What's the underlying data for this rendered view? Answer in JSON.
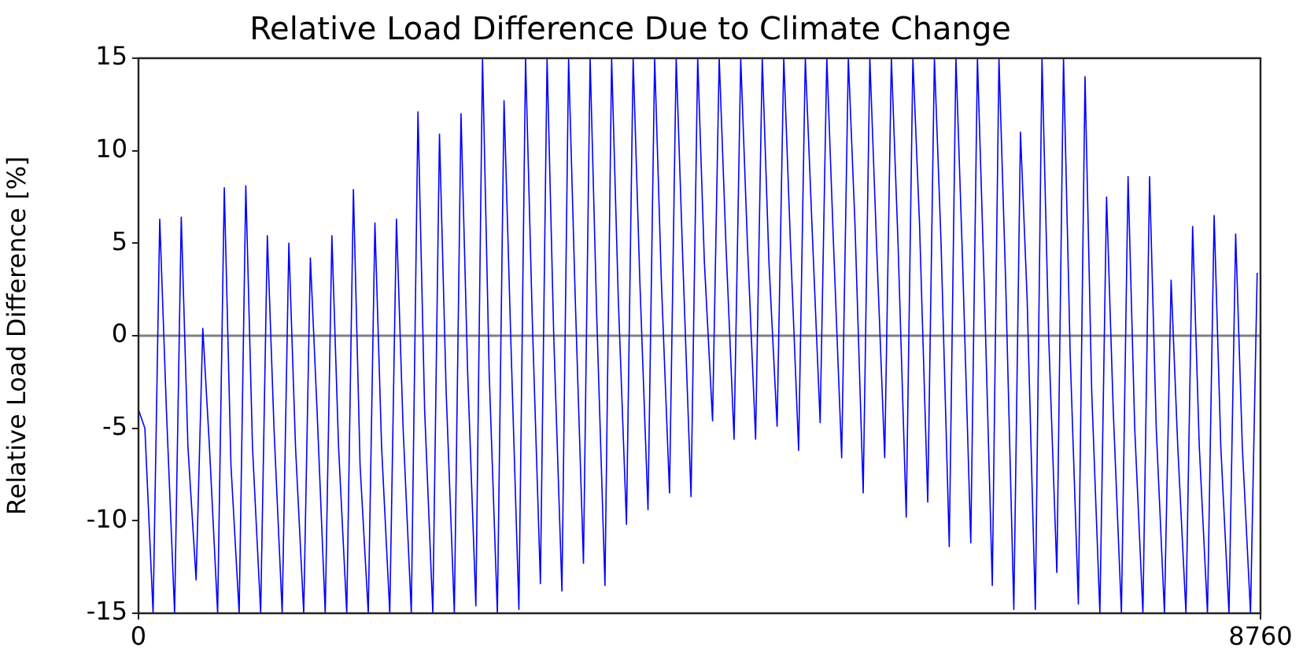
{
  "chart_data": {
    "type": "line",
    "title": "Relative Load Difference Due to Climate Change",
    "ylabel": "Relative Load Difference [%]",
    "xlim": [
      0,
      8760
    ],
    "xticks": [
      0,
      8760
    ],
    "ylim": [
      -15,
      15
    ],
    "yticks": [
      -15,
      -10,
      -5,
      0,
      5,
      10,
      15
    ],
    "grid": false,
    "legend": false,
    "marker": "none",
    "line_style": "solid",
    "ref_lines": [
      {
        "axis": "y",
        "value": 0,
        "color": "#808080"
      }
    ],
    "series": [
      {
        "color": "#0000ff",
        "x": [
          0,
          50,
          114,
          166,
          218,
          282,
          334,
          386,
          450,
          502,
          554,
          618,
          670,
          722,
          786,
          838,
          890,
          954,
          1006,
          1058,
          1122,
          1174,
          1226,
          1290,
          1342,
          1394,
          1458,
          1510,
          1562,
          1626,
          1678,
          1730,
          1794,
          1846,
          1898,
          1962,
          2014,
          2066,
          2130,
          2182,
          2234,
          2298,
          2350,
          2402,
          2466,
          2518,
          2570,
          2634,
          2686,
          2738,
          2802,
          2854,
          2906,
          2970,
          3022,
          3074,
          3138,
          3190,
          3242,
          3306,
          3358,
          3410,
          3474,
          3526,
          3578,
          3642,
          3694,
          3746,
          3810,
          3862,
          3914,
          3978,
          4030,
          4082,
          4146,
          4198,
          4250,
          4314,
          4366,
          4418,
          4482,
          4534,
          4586,
          4650,
          4702,
          4754,
          4818,
          4870,
          4922,
          4986,
          5038,
          5090,
          5154,
          5206,
          5258,
          5322,
          5374,
          5426,
          5490,
          5542,
          5594,
          5658,
          5710,
          5762,
          5826,
          5878,
          5930,
          5994,
          6046,
          6098,
          6162,
          6214,
          6266,
          6330,
          6382,
          6434,
          6498,
          6550,
          6602,
          6666,
          6718,
          6770,
          6834,
          6886,
          6938,
          7002,
          7054,
          7106,
          7170,
          7222,
          7274,
          7338,
          7390,
          7442,
          7506,
          7558,
          7610,
          7674,
          7726,
          7778,
          7842,
          7894,
          7946,
          8010,
          8062,
          8114,
          8178,
          8230,
          8282,
          8346,
          8398,
          8450,
          8514,
          8566,
          8618,
          8682,
          8734
        ],
        "values": [
          -4,
          -5,
          -15,
          6.3,
          -4,
          -15,
          6.4,
          -6,
          -13.2,
          0.4,
          -6,
          -15,
          8.0,
          -7,
          -15,
          8.1,
          -6,
          -15,
          5.4,
          -5,
          -15,
          5.0,
          -6,
          -15,
          4.2,
          -4,
          -15,
          5.4,
          -6,
          -15,
          7.9,
          -7,
          -15,
          6.1,
          -6,
          -15,
          6.3,
          -5,
          -15,
          12.1,
          -4,
          -15,
          10.9,
          -3,
          -15,
          12.0,
          -2,
          -14.6,
          15,
          -2,
          -15,
          12.7,
          0,
          -14.8,
          15,
          1,
          -13.4,
          15,
          0,
          -13.8,
          15,
          2,
          -12.3,
          15,
          1,
          -13.5,
          15,
          2,
          -10.2,
          15,
          3,
          -9.4,
          15,
          3,
          -8.5,
          15,
          4,
          -8.7,
          15,
          4,
          -4.6,
          15,
          5,
          -5.6,
          15,
          5,
          -5.6,
          15,
          4,
          -4.9,
          15,
          5,
          -6.2,
          15,
          6,
          -4.7,
          15,
          5,
          -6.6,
          15,
          6,
          -8.5,
          15,
          5,
          -6.6,
          15,
          5,
          -9.8,
          15,
          6,
          -9.0,
          15,
          5,
          -11.4,
          15,
          4,
          -11.2,
          15,
          3,
          -13.5,
          15,
          3,
          -14.8,
          11.0,
          2,
          -14.8,
          15,
          0,
          -12.8,
          15,
          -1,
          -14.5,
          14.0,
          -3,
          -15,
          7.5,
          -4,
          -15,
          8.6,
          -5,
          -15,
          8.6,
          -5,
          -15,
          3.0,
          -6,
          -15,
          5.9,
          -6,
          -15,
          6.5,
          -6,
          -15,
          5.5,
          -6,
          -15,
          3.4
        ]
      }
    ]
  }
}
